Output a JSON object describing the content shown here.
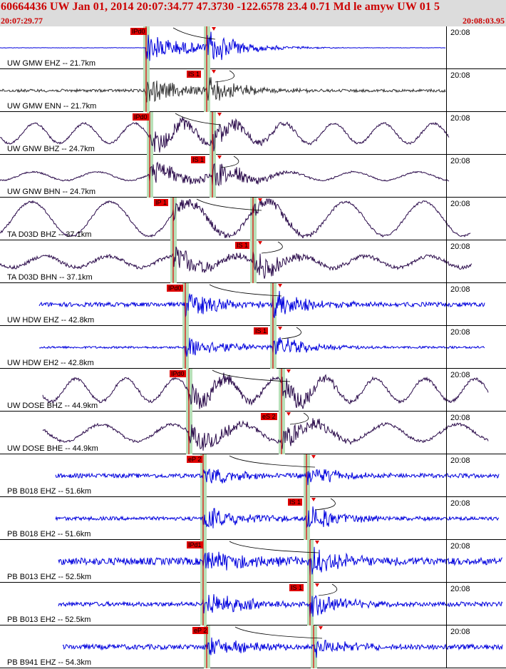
{
  "header": {
    "title": "60664436 UW Jan 01, 2014 20:07:34.77    47.3730 -122.6578 23.4 0.71 Md le amyw UW 01    5",
    "start_time": "20:07:29.77",
    "end_time": "20:08:03.95"
  },
  "colors": {
    "blue_trace": "#0000dd",
    "purple_trace": "#2a0a4a",
    "gray_trace": "#333333",
    "pick": "#e00000",
    "window": "#b8e0b8"
  },
  "time_tick_label": "20:08",
  "traces": [
    {
      "label": "UW GMW EHZ -- 21.7km",
      "pick": "IPd0",
      "color": "blue"
    },
    {
      "label": "UW GMW ENN -- 21.7km",
      "pick": "IS 1",
      "color": "gray"
    },
    {
      "label": "UW GNW BHZ -- 24.7km",
      "pick": "IPd0",
      "color": "purple"
    },
    {
      "label": "UW GNW BHN -- 24.7km",
      "pick": "IS 1",
      "color": "purple"
    },
    {
      "label": "TA D03D BHZ -- 37.1km",
      "pick": "IP 1",
      "color": "purple"
    },
    {
      "label": "TA D03D BHN -- 37.1km",
      "pick": "IS 1",
      "color": "purple"
    },
    {
      "label": "UW HDW EHZ -- 42.8km",
      "pick": "IPd0",
      "color": "blue"
    },
    {
      "label": "UW HDW EH2 -- 42.8km",
      "pick": "IS 1",
      "color": "blue"
    },
    {
      "label": "UW DOSE BHZ -- 44.9km",
      "pick": "IPd0",
      "color": "purple"
    },
    {
      "label": "UW DOSE BHE -- 44.9km",
      "pick": "eS 2",
      "color": "purple"
    },
    {
      "label": "PB B018 EHZ -- 51.6km",
      "pick": "eP 2",
      "color": "blue"
    },
    {
      "label": "PB B018 EH2 -- 51.6km",
      "pick": "IS 1",
      "color": "blue"
    },
    {
      "label": "PB B013 EHZ -- 52.5km",
      "pick": "IPd1",
      "color": "blue"
    },
    {
      "label": "PB B013 EH2 -- 52.5km",
      "pick": "IS 1",
      "color": "blue"
    },
    {
      "label": "PB B941 EHZ -- 54.3km",
      "pick": "eP 2",
      "color": "blue"
    }
  ]
}
